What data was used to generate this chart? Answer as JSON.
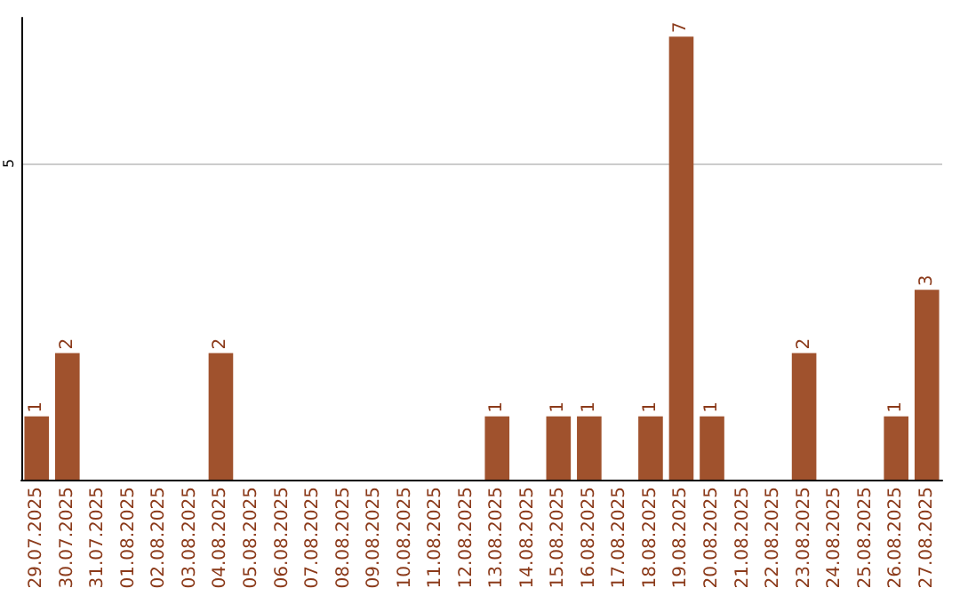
{
  "chart_data": {
    "type": "bar",
    "categories": [
      "29.07.2025",
      "30.07.2025",
      "31.07.2025",
      "01.08.2025",
      "02.08.2025",
      "03.08.2025",
      "04.08.2025",
      "05.08.2025",
      "06.08.2025",
      "07.08.2025",
      "08.08.2025",
      "09.08.2025",
      "10.08.2025",
      "11.08.2025",
      "12.08.2025",
      "13.08.2025",
      "14.08.2025",
      "15.08.2025",
      "16.08.2025",
      "17.08.2025",
      "18.08.2025",
      "19.08.2025",
      "20.08.2025",
      "21.08.2025",
      "22.08.2025",
      "23.08.2025",
      "24.08.2025",
      "25.08.2025",
      "26.08.2025",
      "27.08.2025"
    ],
    "values": [
      1,
      2,
      0,
      0,
      0,
      0,
      2,
      0,
      0,
      0,
      0,
      0,
      0,
      0,
      0,
      1,
      0,
      1,
      1,
      0,
      1,
      7,
      1,
      0,
      0,
      2,
      0,
      0,
      1,
      3
    ],
    "value_labels": [
      "1",
      "2",
      null,
      null,
      null,
      null,
      "2",
      null,
      null,
      null,
      null,
      null,
      null,
      null,
      null,
      "1",
      null,
      "1",
      "1",
      null,
      "1",
      "7",
      "1",
      null,
      null,
      "2",
      null,
      null,
      "1",
      "3"
    ],
    "color": "#a0522d",
    "ylim": [
      0,
      7.3
    ],
    "yticks": [
      5
    ],
    "grid": "y"
  }
}
